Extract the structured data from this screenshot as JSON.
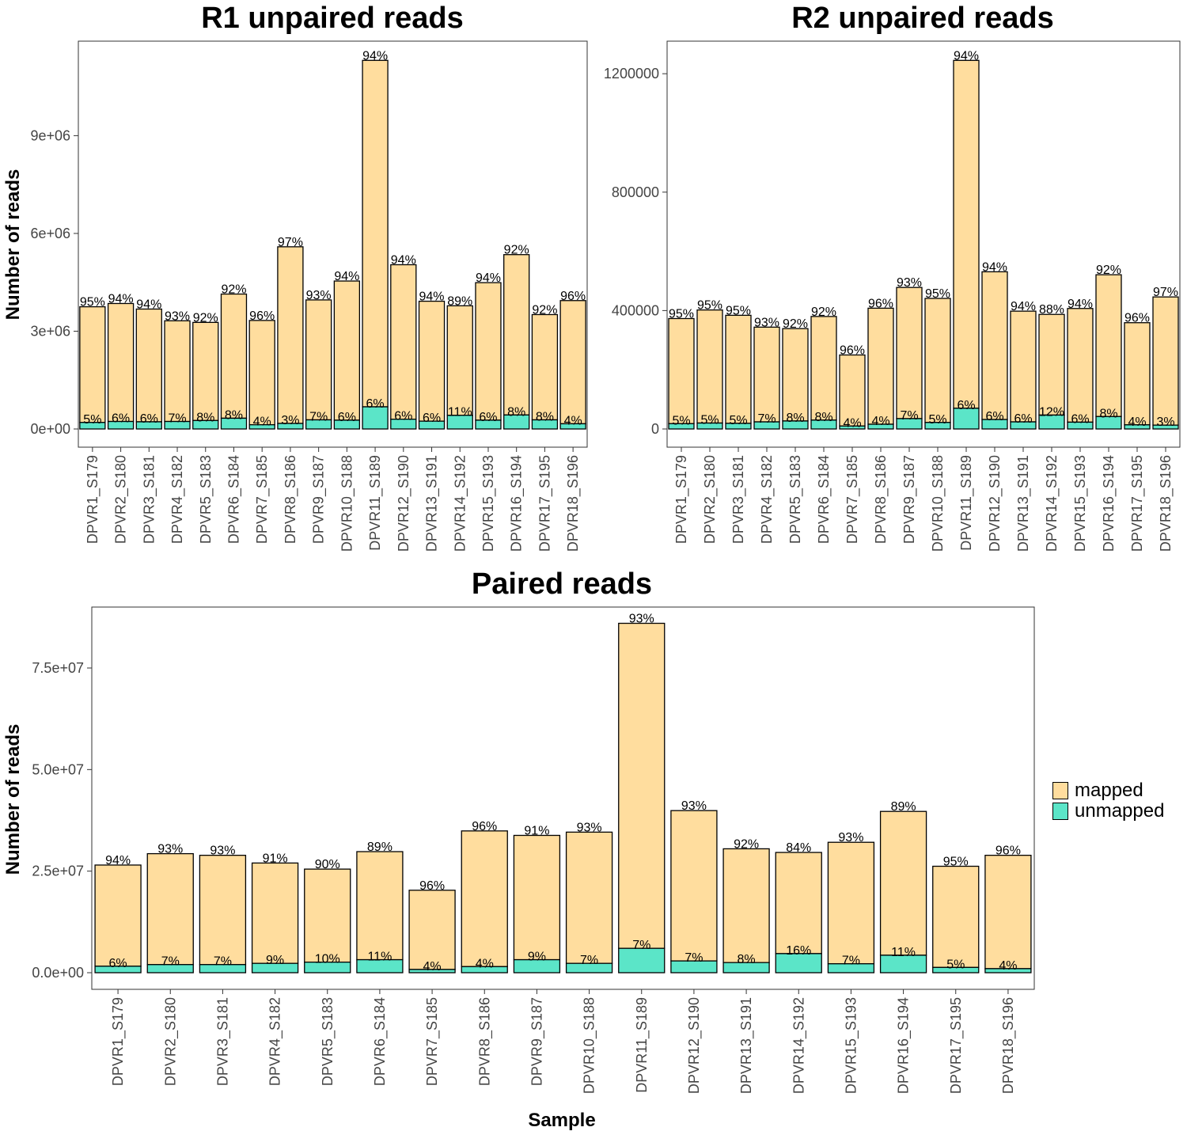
{
  "colors": {
    "mapped": "#FFDD9E",
    "unmapped": "#5BE5C8",
    "axis_text": "#444444"
  },
  "legend": {
    "items": [
      {
        "key": "mapped",
        "label": "mapped"
      },
      {
        "key": "unmapped",
        "label": "unmapped"
      }
    ]
  },
  "chart_data": [
    {
      "type": "bar",
      "stacked": true,
      "title": "R1 unpaired reads",
      "xlabel": "",
      "ylabel": "Number of reads",
      "ylim": [
        0,
        11900000
      ],
      "yticks": [
        0,
        3000000,
        6000000,
        9000000
      ],
      "yticklabels": [
        "0e+00",
        "3e+06",
        "6e+06",
        "9e+06"
      ],
      "categories": [
        "DPVR1_S179",
        "DPVR2_S180",
        "DPVR3_S181",
        "DPVR4_S182",
        "DPVR5_S183",
        "DPVR6_S184",
        "DPVR7_S185",
        "DPVR8_S186",
        "DPVR9_S187",
        "DPVR10_S188",
        "DPVR11_S189",
        "DPVR12_S190",
        "DPVR13_S191",
        "DPVR14_S192",
        "DPVR15_S193",
        "DPVR16_S194",
        "DPVR17_S195",
        "DPVR18_S196"
      ],
      "series": [
        {
          "name": "mapped",
          "values": [
            3550000,
            3620000,
            3460000,
            3090000,
            3010000,
            3810000,
            3200000,
            5420000,
            3680000,
            4270000,
            10630000,
            4740000,
            3680000,
            3360000,
            4220000,
            4920000,
            3230000,
            3780000
          ]
        },
        {
          "name": "unmapped",
          "values": [
            200000,
            230000,
            220000,
            230000,
            260000,
            330000,
            130000,
            170000,
            280000,
            270000,
            680000,
            300000,
            240000,
            420000,
            270000,
            430000,
            280000,
            160000
          ]
        }
      ],
      "top_labels": [
        "95%",
        "94%",
        "94%",
        "93%",
        "92%",
        "92%",
        "96%",
        "97%",
        "93%",
        "94%",
        "94%",
        "94%",
        "94%",
        "89%",
        "94%",
        "92%",
        "92%",
        "96%"
      ],
      "bottom_labels": [
        "5%",
        "6%",
        "6%",
        "7%",
        "8%",
        "8%",
        "4%",
        "3%",
        "7%",
        "6%",
        "6%",
        "6%",
        "6%",
        "11%",
        "6%",
        "8%",
        "8%",
        "4%"
      ]
    },
    {
      "type": "bar",
      "stacked": true,
      "title": "R2 unpaired reads",
      "xlabel": "",
      "ylabel": "",
      "ylim": [
        0,
        1310000
      ],
      "yticks": [
        0,
        400000,
        800000,
        1200000
      ],
      "yticklabels": [
        "0",
        "400000",
        "800000",
        "1200000"
      ],
      "categories": [
        "DPVR1_S179",
        "DPVR2_S180",
        "DPVR3_S181",
        "DPVR4_S182",
        "DPVR5_S183",
        "DPVR6_S184",
        "DPVR7_S185",
        "DPVR8_S186",
        "DPVR9_S187",
        "DPVR10_S188",
        "DPVR11_S189",
        "DPVR12_S190",
        "DPVR13_S191",
        "DPVR14_S192",
        "DPVR15_S193",
        "DPVR16_S194",
        "DPVR17_S195",
        "DPVR18_S196"
      ],
      "series": [
        {
          "name": "mapped",
          "values": [
            355000,
            382000,
            365000,
            320000,
            312000,
            350000,
            240000,
            392000,
            443000,
            419000,
            1175000,
            499000,
            374000,
            340000,
            384000,
            479000,
            345000,
            433000
          ]
        },
        {
          "name": "unmapped",
          "values": [
            18000,
            20000,
            19000,
            24000,
            27000,
            30000,
            10000,
            16000,
            35000,
            22000,
            70000,
            32000,
            24000,
            47000,
            23000,
            42000,
            14000,
            13000
          ]
        }
      ],
      "top_labels": [
        "95%",
        "95%",
        "95%",
        "93%",
        "92%",
        "92%",
        "96%",
        "96%",
        "93%",
        "95%",
        "94%",
        "94%",
        "94%",
        "88%",
        "94%",
        "92%",
        "96%",
        "97%"
      ],
      "bottom_labels": [
        "5%",
        "5%",
        "5%",
        "7%",
        "8%",
        "8%",
        "4%",
        "4%",
        "7%",
        "5%",
        "6%",
        "6%",
        "6%",
        "12%",
        "6%",
        "8%",
        "4%",
        "3%"
      ]
    },
    {
      "type": "bar",
      "stacked": true,
      "title": "Paired reads",
      "xlabel": "Sample",
      "ylabel": "Number of reads",
      "ylim": [
        0,
        90000000
      ],
      "yticks": [
        0,
        25000000,
        50000000,
        75000000
      ],
      "yticklabels": [
        "0.0e+00",
        "2.5e+07",
        "5.0e+07",
        "7.5e+07"
      ],
      "categories": [
        "DPVR1_S179",
        "DPVR2_S180",
        "DPVR3_S181",
        "DPVR4_S182",
        "DPVR5_S183",
        "DPVR6_S184",
        "DPVR7_S185",
        "DPVR8_S186",
        "DPVR9_S187",
        "DPVR10_S188",
        "DPVR11_S189",
        "DPVR12_S190",
        "DPVR13_S191",
        "DPVR14_S192",
        "DPVR15_S193",
        "DPVR16_S194",
        "DPVR17_S195",
        "DPVR18_S196"
      ],
      "series": [
        {
          "name": "mapped",
          "values": [
            24900000,
            27300000,
            26900000,
            24700000,
            22900000,
            26600000,
            19500000,
            33400000,
            30600000,
            32300000,
            80000000,
            37000000,
            28000000,
            24900000,
            29900000,
            35400000,
            24900000,
            27900000
          ]
        },
        {
          "name": "unmapped",
          "values": [
            1600000,
            2000000,
            2000000,
            2300000,
            2600000,
            3200000,
            800000,
            1500000,
            3200000,
            2300000,
            6000000,
            2900000,
            2500000,
            4700000,
            2200000,
            4300000,
            1300000,
            1000000
          ]
        }
      ],
      "top_labels": [
        "94%",
        "93%",
        "93%",
        "91%",
        "90%",
        "89%",
        "96%",
        "96%",
        "91%",
        "93%",
        "93%",
        "93%",
        "92%",
        "84%",
        "93%",
        "89%",
        "95%",
        "96%"
      ],
      "bottom_labels": [
        "6%",
        "7%",
        "7%",
        "9%",
        "10%",
        "11%",
        "4%",
        "4%",
        "9%",
        "7%",
        "7%",
        "7%",
        "8%",
        "16%",
        "7%",
        "11%",
        "5%",
        "4%"
      ]
    }
  ]
}
